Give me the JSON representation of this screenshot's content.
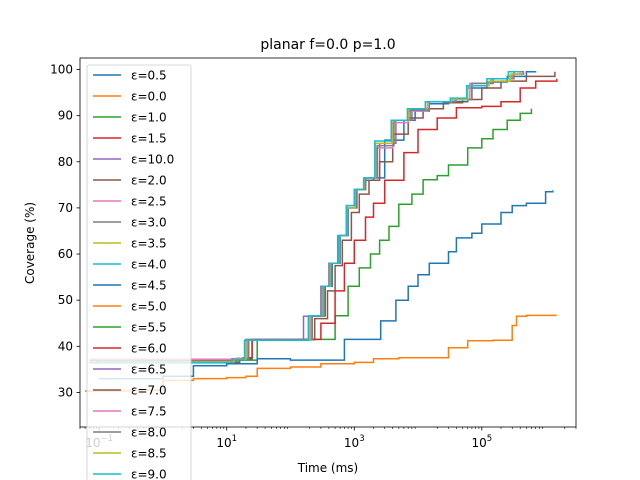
{
  "chart_data": {
    "type": "line",
    "title": "planar f=0.0 p=1.0",
    "xlabel": "Time (ms)",
    "ylabel": "Coverage (%)",
    "xscale": "log",
    "xlim": [
      0.05,
      3000000
    ],
    "ylim": [
      22.5,
      102.5
    ],
    "xticks": [
      {
        "value": 0.1,
        "base": "10",
        "exp": "−1"
      },
      {
        "value": 10,
        "base": "10",
        "exp": "1"
      },
      {
        "value": 1000,
        "base": "10",
        "exp": "3"
      },
      {
        "value": 100000,
        "base": "10",
        "exp": "5"
      }
    ],
    "yticks": [
      30,
      40,
      50,
      60,
      70,
      80,
      90,
      100
    ],
    "grid": false,
    "legend_position": "upper-left",
    "series": [
      {
        "name": "ε=0.5",
        "color": "#1f77b4",
        "points": [
          [
            0.07,
            37
          ],
          [
            15,
            37.2
          ],
          [
            25,
            41.3
          ],
          [
            150,
            41.3
          ],
          [
            200,
            46.6
          ],
          [
            350,
            53
          ],
          [
            450,
            58
          ],
          [
            600,
            64
          ],
          [
            800,
            70
          ],
          [
            1100,
            74
          ],
          [
            1500,
            76
          ],
          [
            2000,
            76.5
          ],
          [
            3000,
            84.7
          ],
          [
            6000,
            89
          ],
          [
            9000,
            91
          ],
          [
            15000,
            92.6
          ],
          [
            30000,
            93
          ],
          [
            60000,
            96
          ],
          [
            120000,
            97.3
          ],
          [
            250000,
            98.5
          ],
          [
            500000,
            99.5
          ],
          [
            700000,
            99.6
          ]
        ]
      },
      {
        "name": "ε=0.0",
        "color": "#ff7f0e",
        "points": [
          [
            0.06,
            30.3
          ],
          [
            0.15,
            30.3
          ],
          [
            0.3,
            30.5
          ],
          [
            1,
            32.6
          ],
          [
            3,
            33
          ],
          [
            10,
            33.2
          ],
          [
            20,
            33.5
          ],
          [
            30,
            35.2
          ],
          [
            100,
            35.5
          ],
          [
            300,
            36.2
          ],
          [
            1000,
            36.5
          ],
          [
            2000,
            37.3
          ],
          [
            5000,
            37.5
          ],
          [
            20000,
            37.5
          ],
          [
            30000,
            39.7
          ],
          [
            60000,
            41.2
          ],
          [
            150000,
            41.3
          ],
          [
            250000,
            41.3
          ],
          [
            300000,
            44.5
          ],
          [
            350000,
            46.5
          ],
          [
            500000,
            46.7
          ],
          [
            1500000,
            46.7
          ]
        ]
      },
      {
        "name": "ε=1.0",
        "color": "#2ca02c",
        "points": [
          [
            0.08,
            37
          ],
          [
            20,
            37
          ],
          [
            30,
            41.5
          ],
          [
            300,
            41.5
          ],
          [
            500,
            46.6
          ],
          [
            800,
            53
          ],
          [
            1200,
            57
          ],
          [
            1800,
            60
          ],
          [
            2500,
            63
          ],
          [
            3500,
            66
          ],
          [
            5000,
            70.8
          ],
          [
            8000,
            73
          ],
          [
            12000,
            76.1
          ],
          [
            20000,
            77
          ],
          [
            30000,
            79.3
          ],
          [
            60000,
            83
          ],
          [
            100000,
            85
          ],
          [
            150000,
            87
          ],
          [
            250000,
            89
          ],
          [
            400000,
            90.5
          ],
          [
            600000,
            91.5
          ]
        ]
      },
      {
        "name": "ε=1.5",
        "color": "#d62728",
        "points": [
          [
            0.09,
            37
          ],
          [
            18,
            37.5
          ],
          [
            25,
            41.5
          ],
          [
            220,
            41.5
          ],
          [
            300,
            45
          ],
          [
            500,
            52
          ],
          [
            700,
            58
          ],
          [
            1000,
            63
          ],
          [
            1500,
            68
          ],
          [
            2000,
            71
          ],
          [
            3000,
            76
          ],
          [
            6000,
            82
          ],
          [
            10000,
            87
          ],
          [
            20000,
            89.5
          ],
          [
            40000,
            91.7
          ],
          [
            100000,
            92
          ],
          [
            200000,
            93
          ],
          [
            400000,
            96
          ],
          [
            700000,
            97.5
          ],
          [
            1500000,
            98
          ]
        ]
      },
      {
        "name": "ε=10.0",
        "color": "#9467bd",
        "points": [
          [
            0.1,
            37
          ],
          [
            12,
            37.3
          ],
          [
            20,
            41.5
          ],
          [
            120,
            41.5
          ],
          [
            160,
            46.5
          ],
          [
            300,
            53
          ],
          [
            400,
            58
          ],
          [
            550,
            64
          ],
          [
            750,
            70.5
          ],
          [
            1000,
            74
          ],
          [
            1500,
            76.5
          ],
          [
            2500,
            84
          ],
          [
            4500,
            89
          ],
          [
            8000,
            91.5
          ],
          [
            15000,
            93
          ],
          [
            40000,
            93.5
          ],
          [
            70000,
            97
          ],
          [
            150000,
            98
          ],
          [
            300000,
            99
          ],
          [
            450000,
            99.5
          ]
        ]
      },
      {
        "name": "ε=2.0",
        "color": "#8c564b",
        "points": [
          [
            0.07,
            36.5
          ],
          [
            16,
            37.3
          ],
          [
            22,
            41.4
          ],
          [
            180,
            41.4
          ],
          [
            240,
            46
          ],
          [
            380,
            52
          ],
          [
            500,
            57.5
          ],
          [
            650,
            63
          ],
          [
            900,
            69
          ],
          [
            1200,
            73
          ],
          [
            1700,
            76
          ],
          [
            2500,
            80
          ],
          [
            4000,
            86
          ],
          [
            7000,
            89.5
          ],
          [
            12000,
            91.5
          ],
          [
            25000,
            92.8
          ],
          [
            50000,
            93.5
          ],
          [
            100000,
            96
          ],
          [
            200000,
            97.5
          ],
          [
            500000,
            98.5
          ],
          [
            1400000,
            99.5
          ]
        ]
      },
      {
        "name": "ε=2.5",
        "color": "#e377c2",
        "points": [
          [
            0.08,
            37.2
          ],
          [
            14,
            37.4
          ],
          [
            21,
            41.4
          ],
          [
            160,
            41.4
          ],
          [
            210,
            46.5
          ],
          [
            330,
            53
          ],
          [
            430,
            58
          ],
          [
            580,
            64
          ],
          [
            780,
            70
          ],
          [
            1050,
            74
          ],
          [
            1450,
            76.5
          ],
          [
            2200,
            83
          ],
          [
            4000,
            88.5
          ],
          [
            7000,
            91
          ],
          [
            14000,
            93
          ],
          [
            35000,
            93.5
          ],
          [
            65000,
            97
          ],
          [
            140000,
            98
          ],
          [
            300000,
            99
          ],
          [
            420000,
            99.2
          ]
        ]
      },
      {
        "name": "ε=3.0",
        "color": "#7f7f7f",
        "points": [
          [
            0.09,
            36.8
          ],
          [
            15,
            37.3
          ],
          [
            22,
            41.4
          ],
          [
            170,
            41.4
          ],
          [
            220,
            46.5
          ],
          [
            340,
            53
          ],
          [
            440,
            58
          ],
          [
            590,
            64
          ],
          [
            800,
            70
          ],
          [
            1080,
            74
          ],
          [
            1500,
            76.5
          ],
          [
            2300,
            83.5
          ],
          [
            4200,
            89
          ],
          [
            7500,
            91.2
          ],
          [
            15000,
            93
          ],
          [
            38000,
            93.5
          ],
          [
            70000,
            97
          ],
          [
            150000,
            98
          ],
          [
            320000,
            99.5
          ],
          [
            460000,
            99.5
          ]
        ]
      },
      {
        "name": "ε=3.5",
        "color": "#bcbd22",
        "points": [
          [
            0.1,
            36.6
          ],
          [
            13,
            37.2
          ],
          [
            20,
            41.3
          ],
          [
            150,
            41.3
          ],
          [
            200,
            46.6
          ],
          [
            320,
            53
          ],
          [
            420,
            58
          ],
          [
            570,
            64
          ],
          [
            770,
            70
          ],
          [
            1030,
            74
          ],
          [
            1420,
            76.5
          ],
          [
            2150,
            84
          ],
          [
            3900,
            89
          ],
          [
            7000,
            91.5
          ],
          [
            14000,
            93
          ],
          [
            33000,
            93.5
          ],
          [
            60000,
            96.5
          ],
          [
            130000,
            97.5
          ],
          [
            280000,
            99
          ],
          [
            400000,
            99.5
          ]
        ]
      },
      {
        "name": "ε=4.0",
        "color": "#17becf",
        "points": [
          [
            0.08,
            36.4
          ],
          [
            12,
            37.1
          ],
          [
            19,
            41.3
          ],
          [
            140,
            41.3
          ],
          [
            190,
            46.6
          ],
          [
            310,
            53
          ],
          [
            410,
            58
          ],
          [
            560,
            64
          ],
          [
            760,
            70.5
          ],
          [
            1010,
            74
          ],
          [
            1400,
            76.5
          ],
          [
            2100,
            84.5
          ],
          [
            3800,
            89
          ],
          [
            6800,
            91.5
          ],
          [
            13000,
            93
          ],
          [
            32000,
            93.8
          ],
          [
            58000,
            96.5
          ],
          [
            120000,
            98
          ],
          [
            260000,
            99.5
          ],
          [
            380000,
            99.6
          ]
        ]
      },
      {
        "name": "ε=4.5",
        "color": "#1f77b4",
        "points": [
          [
            0.1,
            33
          ],
          [
            1,
            33.5
          ],
          [
            3,
            35.8
          ],
          [
            10,
            36.2
          ],
          [
            30,
            37.3
          ],
          [
            100,
            37
          ],
          [
            300,
            37
          ],
          [
            700,
            41.5
          ],
          [
            2000,
            41.5
          ],
          [
            2600,
            45.5
          ],
          [
            4500,
            50
          ],
          [
            7000,
            53
          ],
          [
            10000,
            55.5
          ],
          [
            15000,
            58
          ],
          [
            30000,
            60.5
          ],
          [
            40000,
            63.5
          ],
          [
            70000,
            64.5
          ],
          [
            100000,
            66.5
          ],
          [
            200000,
            69
          ],
          [
            300000,
            70.5
          ],
          [
            500000,
            71
          ],
          [
            1000000,
            73.5
          ],
          [
            1300000,
            73.8
          ]
        ]
      },
      {
        "name": "ε=5.0",
        "color": "#ff7f0e",
        "points": []
      },
      {
        "name": "ε=5.5",
        "color": "#2ca02c",
        "points": []
      },
      {
        "name": "ε=6.0",
        "color": "#d62728",
        "points": []
      },
      {
        "name": "ε=6.5",
        "color": "#9467bd",
        "points": []
      },
      {
        "name": "ε=7.0",
        "color": "#8c564b",
        "points": []
      },
      {
        "name": "ε=7.5",
        "color": "#e377c2",
        "points": []
      },
      {
        "name": "ε=8.0",
        "color": "#7f7f7f",
        "points": []
      },
      {
        "name": "ε=8.5",
        "color": "#bcbd22",
        "points": []
      },
      {
        "name": "ε=9.0",
        "color": "#17becf",
        "points": []
      }
    ]
  }
}
